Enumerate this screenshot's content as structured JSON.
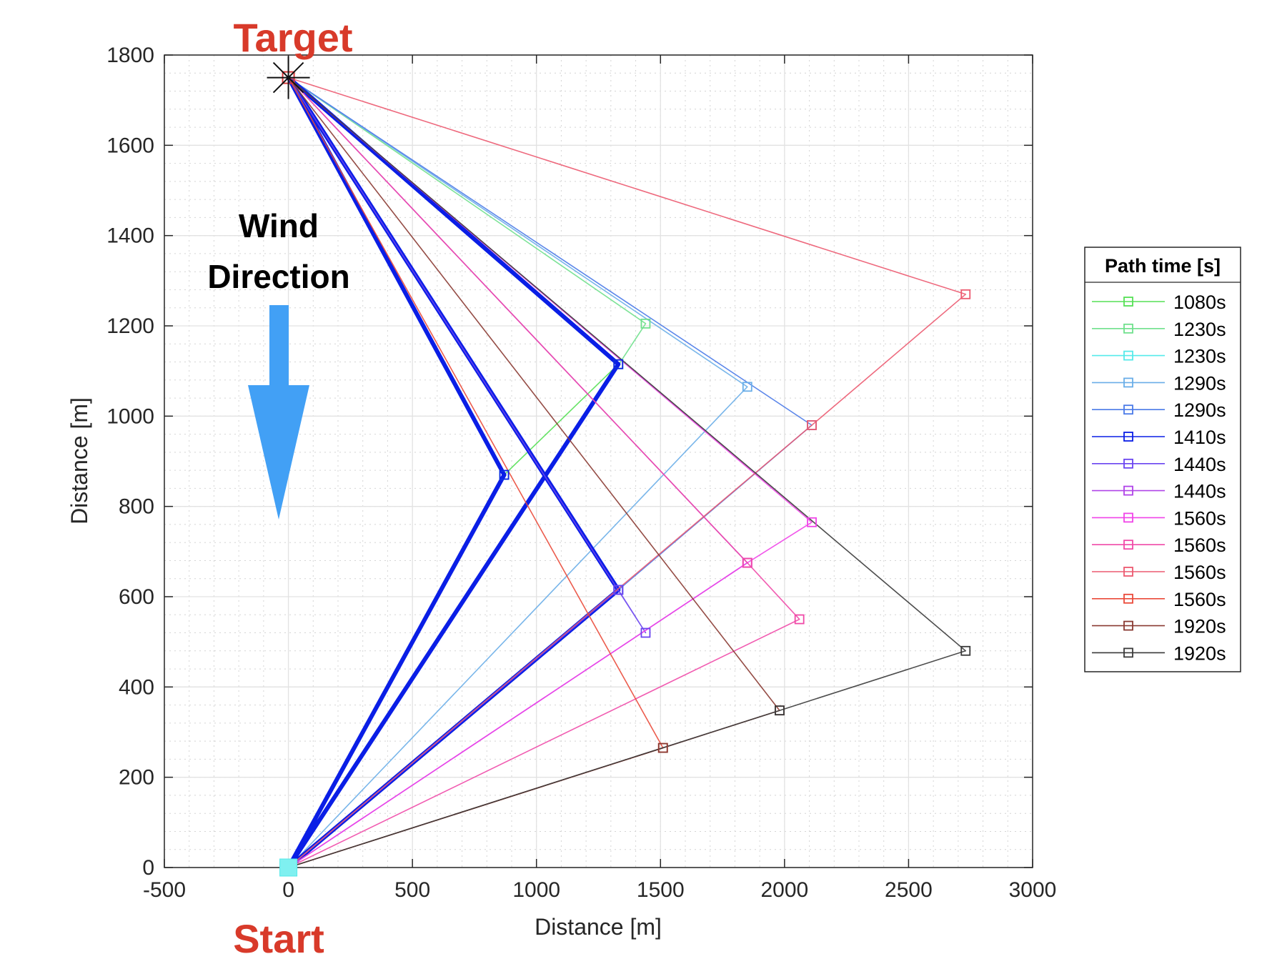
{
  "chart_data": {
    "type": "line",
    "xlabel": "Distance [m]",
    "ylabel": "Distance [m]",
    "xlim": [
      -500,
      3000
    ],
    "ylim": [
      0,
      1800
    ],
    "xticks": [
      -500,
      0,
      500,
      1000,
      1500,
      2000,
      2500,
      3000
    ],
    "yticks": [
      0,
      200,
      400,
      600,
      800,
      1000,
      1200,
      1400,
      1600,
      1800
    ],
    "grid": true,
    "minor_grid": true,
    "start": {
      "label": "Start",
      "x": 0,
      "y": 0
    },
    "target": {
      "label": "Target",
      "x": 0,
      "y": 1750
    },
    "wind": {
      "line1": "Wind",
      "line2": "Direction",
      "direction": "down",
      "color": "#42a0f5"
    },
    "legend": {
      "title": "Path time [s]",
      "placement": "outside-right"
    },
    "series": [
      {
        "name": "1080s",
        "color": "#55e055",
        "x": [
          0,
          870,
          1330,
          0
        ],
        "y": [
          0,
          870,
          1115,
          1750
        ]
      },
      {
        "name": "1230s",
        "color": "#6fe08c",
        "x": [
          0,
          1440,
          0
        ],
        "y": [
          0,
          1205,
          1750
        ]
      },
      {
        "name": "1230s",
        "color": "#55eaea",
        "x": [
          0,
          870,
          0
        ],
        "y": [
          0,
          870,
          1750
        ]
      },
      {
        "name": "1290s",
        "color": "#6aaee8",
        "x": [
          0,
          1850,
          0
        ],
        "y": [
          0,
          1065,
          1750
        ]
      },
      {
        "name": "1290s",
        "color": "#4a7ae8",
        "x": [
          0,
          1330,
          2110,
          0
        ],
        "y": [
          0,
          615,
          980,
          1750
        ]
      },
      {
        "name": "1410s",
        "color": "#0a1ee6",
        "x": [
          0,
          870,
          0,
          1330,
          0,
          1330,
          0
        ],
        "y": [
          0,
          870,
          1750,
          615,
          0,
          1115,
          1750
        ]
      },
      {
        "name": "1440s",
        "color": "#6a44f0",
        "x": [
          0,
          1330,
          1440,
          0
        ],
        "y": [
          0,
          615,
          520,
          1750
        ]
      },
      {
        "name": "1440s",
        "color": "#b044e8",
        "x": [
          0,
          1850,
          0
        ],
        "y": [
          0,
          675,
          1750
        ]
      },
      {
        "name": "1560s",
        "color": "#f044e8",
        "x": [
          0,
          1850,
          2110,
          0
        ],
        "y": [
          0,
          675,
          765,
          1750
        ]
      },
      {
        "name": "1560s",
        "color": "#f04aa8",
        "x": [
          0,
          2060,
          1850,
          0
        ],
        "y": [
          0,
          550,
          675,
          1750
        ]
      },
      {
        "name": "1560s",
        "color": "#ec5a70",
        "x": [
          0,
          2110,
          2730,
          0
        ],
        "y": [
          0,
          980,
          1270,
          1750
        ]
      },
      {
        "name": "1560s",
        "color": "#ea4a3a",
        "x": [
          0,
          1510,
          0
        ],
        "y": [
          0,
          265,
          1750
        ]
      },
      {
        "name": "1920s",
        "color": "#8a3a32",
        "x": [
          0,
          1510,
          1980,
          0
        ],
        "y": [
          0,
          265,
          348,
          1750
        ]
      },
      {
        "name": "1920s",
        "color": "#3a3a3a",
        "x": [
          0,
          1980,
          2730,
          0
        ],
        "y": [
          0,
          348,
          480,
          1750
        ]
      }
    ]
  }
}
